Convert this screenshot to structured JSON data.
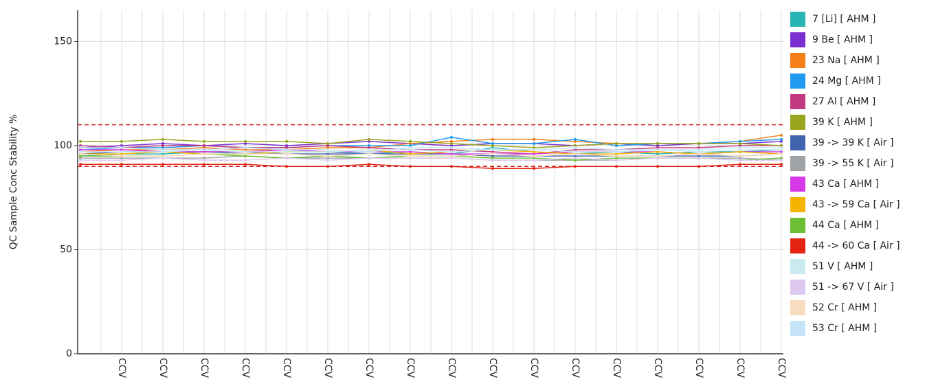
{
  "chart_data": {
    "type": "line",
    "y_label": "QC Sample Conc Stability %",
    "categories": [
      null,
      "CCV",
      "CCV",
      "CCV",
      "CCV",
      "CCV",
      "CCV",
      "CCV",
      "CCV",
      "CCV",
      "CCV",
      "CCV",
      "CCV",
      "CCV",
      "CCV",
      "CCV",
      "CCV",
      "CCV"
    ],
    "ylim": [
      0,
      165
    ],
    "yticks": [
      0,
      50,
      100,
      150
    ],
    "grid": true,
    "limit_lines": {
      "color": "#d62020",
      "values": [
        110,
        90
      ]
    },
    "legend_position": "right",
    "series": [
      {
        "name": "7 [Li] [ AHM ]",
        "color": "#2ab5b5",
        "values": [
          95,
          96,
          96,
          97,
          96,
          97,
          97,
          96,
          97,
          96,
          99,
          97,
          96,
          97,
          96,
          97,
          97,
          98
        ]
      },
      {
        "name": "9 Be [ AHM ]",
        "color": "#7b2fd0",
        "values": [
          99,
          100,
          101,
          100,
          101,
          100,
          101,
          102,
          101,
          100,
          101,
          101,
          100,
          101,
          100,
          101,
          101,
          102
        ]
      },
      {
        "name": "23 Na [ AHM ]",
        "color": "#f47e17",
        "values": [
          97,
          98,
          98,
          99,
          98,
          98,
          99,
          99,
          101,
          102,
          103,
          103,
          102,
          101,
          101,
          101,
          102,
          105
        ]
      },
      {
        "name": "24 Mg [ AHM ]",
        "color": "#1e9bf0",
        "values": [
          98,
          99,
          99,
          100,
          99,
          99,
          100,
          100,
          100,
          104,
          101,
          101,
          103,
          100,
          101,
          101,
          102,
          103
        ]
      },
      {
        "name": "27 Al [ AHM ]",
        "color": "#c2397f",
        "values": [
          100,
          99,
          100,
          100,
          99,
          99,
          100,
          99,
          98,
          98,
          97,
          96,
          98,
          98,
          99,
          99,
          100,
          100
        ]
      },
      {
        "name": "39 K [ AHM ]",
        "color": "#9aa51f",
        "values": [
          102,
          102,
          103,
          102,
          102,
          102,
          101,
          103,
          102,
          101,
          100,
          99,
          100,
          101,
          101,
          101,
          101,
          100
        ]
      },
      {
        "name": "39 -> 39 K [ Air ]",
        "color": "#4064ad",
        "values": [
          96,
          97,
          97,
          97,
          97,
          96,
          96,
          96,
          96,
          96,
          95,
          95,
          95,
          95,
          95,
          95,
          95,
          96
        ]
      },
      {
        "name": "39 -> 55 K [ Air ]",
        "color": "#9ea3a8",
        "values": [
          94,
          94,
          94,
          94,
          95,
          94,
          94,
          94,
          94,
          94,
          93,
          93,
          93,
          93,
          94,
          94,
          94,
          93
        ]
      },
      {
        "name": "43 Ca [ AHM ]",
        "color": "#d63ae8",
        "values": [
          98,
          98,
          97,
          97,
          97,
          98,
          97,
          97,
          97,
          96,
          96,
          96,
          97,
          97,
          97,
          96,
          97,
          97
        ]
      },
      {
        "name": "43 -> 59 Ca [ Air ]",
        "color": "#f5b400",
        "values": [
          96,
          96,
          97,
          96,
          96,
          97,
          97,
          98,
          96,
          97,
          98,
          97,
          96,
          96,
          97,
          96,
          97,
          96
        ]
      },
      {
        "name": "44 Ca [ AHM ]",
        "color": "#6cbf35",
        "values": [
          95,
          95,
          95,
          96,
          95,
          94,
          95,
          94,
          95,
          95,
          94,
          94,
          93,
          94,
          94,
          94,
          93,
          94
        ]
      },
      {
        "name": "44 -> 60 Ca [ Air ]",
        "color": "#e42312",
        "values": [
          91,
          91,
          91,
          91,
          91,
          90,
          90,
          91,
          90,
          90,
          89,
          89,
          90,
          90,
          90,
          90,
          91,
          91
        ]
      },
      {
        "name": "51 V [ AHM ]",
        "color": "#c8eaf0",
        "values": [
          97,
          97,
          97,
          98,
          97,
          97,
          97,
          98,
          98,
          97,
          98,
          98,
          97,
          97,
          98,
          97,
          98,
          98
        ]
      },
      {
        "name": "51 -> 67 V [ Air ]",
        "color": "#dcc8f0",
        "values": [
          93,
          93,
          94,
          93,
          93,
          94,
          93,
          94,
          94,
          94,
          93,
          93,
          94,
          93,
          94,
          94,
          93,
          93
        ]
      },
      {
        "name": "52 Cr [ AHM ]",
        "color": "#f8dcc0",
        "values": [
          96,
          95,
          95,
          96,
          96,
          96,
          95,
          96,
          95,
          95,
          96,
          95,
          96,
          95,
          95,
          96,
          95,
          96
        ]
      },
      {
        "name": "53 Cr [ AHM ]",
        "color": "#c5e4f7",
        "values": [
          99,
          99,
          98,
          98,
          99,
          98,
          98,
          97,
          99,
          99,
          98,
          98,
          99,
          98,
          98,
          98,
          99,
          99
        ]
      }
    ]
  }
}
